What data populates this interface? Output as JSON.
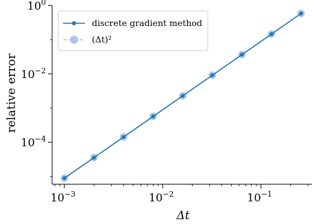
{
  "chart_data": {
    "type": "line",
    "xscale": "log",
    "yscale": "log",
    "xlabel": "Δt",
    "ylabel": "relative error",
    "xlim": [
      0.00075,
      0.33
    ],
    "ylim": [
      5.9e-06,
      1.0
    ],
    "x_ticks": [
      {
        "value": 0.001,
        "base": "10",
        "exp": "−3"
      },
      {
        "value": 0.01,
        "base": "10",
        "exp": "−2"
      },
      {
        "value": 0.1,
        "base": "10",
        "exp": "−1"
      }
    ],
    "y_ticks": [
      {
        "value": 1,
        "base": "10",
        "exp": "0"
      },
      {
        "value": 0.01,
        "base": "10",
        "exp": "−2"
      },
      {
        "value": 0.0001,
        "base": "10",
        "exp": "−4"
      }
    ],
    "legend": {
      "placement": "upper-left"
    },
    "series": [
      {
        "name": "discrete gradient method",
        "color": "#1f77b4",
        "style": "solid-line-dot-markers",
        "x": [
          0.001,
          0.002,
          0.004,
          0.008,
          0.016,
          0.032,
          0.064,
          0.128,
          0.256
        ],
        "y": [
          8.9e-06,
          3.55e-05,
          0.000142,
          0.00057,
          0.00228,
          0.0091,
          0.0365,
          0.146,
          0.585
        ]
      },
      {
        "name": "(Δt)²",
        "color": "#aec7e8",
        "style": "dashed-line-large-markers",
        "x": [
          0.001,
          0.002,
          0.004,
          0.008,
          0.016,
          0.032,
          0.064,
          0.128,
          0.256
        ],
        "y": [
          8.9e-06,
          3.56e-05,
          0.000143,
          0.000571,
          0.00228,
          0.00913,
          0.0365,
          0.146,
          0.584
        ]
      }
    ]
  }
}
